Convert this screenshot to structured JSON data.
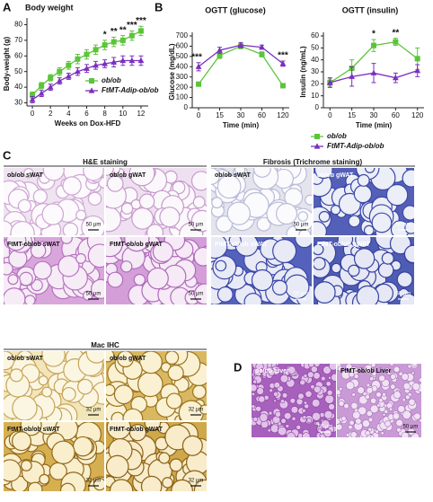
{
  "figure_labels": [
    "A",
    "B",
    "C",
    "D"
  ],
  "chart_data": [
    {
      "type": "line",
      "title": "Body weight",
      "x_label": "Weeks on Dox-HFD",
      "y_label": "Body-weight (g)",
      "x": [
        0,
        1,
        2,
        3,
        4,
        5,
        6,
        7,
        8,
        9,
        10,
        11,
        12
      ],
      "xlim": [
        -0.6,
        12.8
      ],
      "xticks": [
        0,
        2,
        4,
        6,
        8,
        10,
        12
      ],
      "ylim": [
        28,
        82
      ],
      "yticks": [
        30,
        40,
        50,
        60,
        70,
        80
      ],
      "legend": "lower right",
      "series": [
        {
          "name": "ob/ob",
          "color": "#5cc43a",
          "marker": "square",
          "values": [
            35,
            41,
            46,
            50,
            54,
            58,
            61,
            64,
            67,
            69,
            70,
            73,
            76
          ],
          "errors": [
            2,
            2,
            2,
            2.5,
            2.5,
            3,
            3,
            3,
            3,
            3,
            3,
            3,
            3
          ]
        },
        {
          "name": "FtMT-Adip-ob/ob",
          "color": "#7b2fbf",
          "marker": "triangle",
          "values": [
            32,
            36,
            40,
            44,
            47,
            50,
            52,
            54,
            55,
            56,
            57,
            57,
            57
          ],
          "errors": [
            2,
            2,
            2,
            2,
            2,
            2.5,
            2.5,
            2.5,
            2.5,
            3,
            3,
            3,
            3
          ]
        }
      ],
      "annotations": [
        {
          "x": 8,
          "text": "*"
        },
        {
          "x": 9,
          "text": "**"
        },
        {
          "x": 10,
          "text": "**"
        },
        {
          "x": 11,
          "text": "***"
        },
        {
          "x": 12,
          "text": "***"
        }
      ]
    },
    {
      "type": "line",
      "title": "OGTT (glucose)",
      "x_label": "Time (min)",
      "y_label": "Glucose (mg/dL)",
      "categories": [
        "0",
        "15",
        "30",
        "60",
        "120"
      ],
      "ylim": [
        0,
        700
      ],
      "yticks": [
        0,
        100,
        200,
        300,
        400,
        500,
        600,
        700
      ],
      "series": [
        {
          "color": "#5cc43a",
          "marker": "square",
          "values": [
            230,
            510,
            600,
            520,
            215
          ],
          "errors": [
            15,
            30,
            25,
            25,
            15
          ]
        },
        {
          "color": "#7b2fbf",
          "marker": "triangle",
          "values": [
            400,
            560,
            610,
            590,
            430
          ],
          "errors": [
            40,
            30,
            25,
            20,
            25
          ]
        }
      ],
      "annotations": [
        {
          "x": "0",
          "text": "***"
        },
        {
          "x": "120",
          "text": "***"
        }
      ]
    },
    {
      "type": "line",
      "title": "OGTT (insulin)",
      "x_label": "Time (min)",
      "y_label": "Insulin (ng/mL)",
      "categories": [
        "0",
        "15",
        "30",
        "60",
        "120"
      ],
      "ylim": [
        0,
        60
      ],
      "yticks": [
        0,
        10,
        20,
        30,
        40,
        50,
        60
      ],
      "legend": "below",
      "series": [
        {
          "name": "ob/ob",
          "color": "#5cc43a",
          "marker": "square",
          "values": [
            21,
            33,
            52,
            55,
            41
          ],
          "errors": [
            3,
            7,
            5,
            3,
            9
          ]
        },
        {
          "name": "FtMT-Adip-ob/ob",
          "color": "#7b2fbf",
          "marker": "triangle",
          "values": [
            21,
            26,
            29,
            25,
            31
          ],
          "errors": [
            4,
            8,
            8,
            4,
            5
          ]
        }
      ],
      "annotations": [
        {
          "x": "30",
          "text": "*"
        },
        {
          "x": "60",
          "text": "**"
        }
      ]
    }
  ],
  "image_groups": [
    {
      "title": "H&E staining",
      "images": [
        {
          "label": "ob/ob sWAT",
          "scale": "50 μm"
        },
        {
          "label": "ob/ob gWAT",
          "scale": "50 μm"
        },
        {
          "label": "FtMT-ob/ob sWAT",
          "scale": "50 μm"
        },
        {
          "label": "FtMT-ob/ob gWAT",
          "scale": "50 μm"
        }
      ]
    },
    {
      "title": "Fibrosis (Trichrome staining)",
      "images": [
        {
          "label": "ob/ob sWAT",
          "scale": "50 μm"
        },
        {
          "label": "ob/ob gWAT",
          "scale": "50 μm"
        },
        {
          "label": "FtMT-ob/ob sWAT",
          "scale": "50 μm"
        },
        {
          "label": "FtMT-ob/ob gWAT",
          "scale": "50 μm"
        }
      ]
    },
    {
      "title": "Mac IHC",
      "images": [
        {
          "label": "ob/ob sWAT",
          "scale": "32 μm"
        },
        {
          "label": "ob/ob gWAT",
          "scale": "32 μm"
        },
        {
          "label": "FtMT-ob/ob sWAT",
          "scale": "32 μm"
        },
        {
          "label": "FtMT-ob/ob gWAT",
          "scale": "32 μm"
        }
      ]
    },
    {
      "images": [
        {
          "label": "ob/ob Liver",
          "scale": "50 μm"
        },
        {
          "label": "FtMT-ob/ob Liver",
          "scale": "50 μm"
        }
      ]
    }
  ]
}
